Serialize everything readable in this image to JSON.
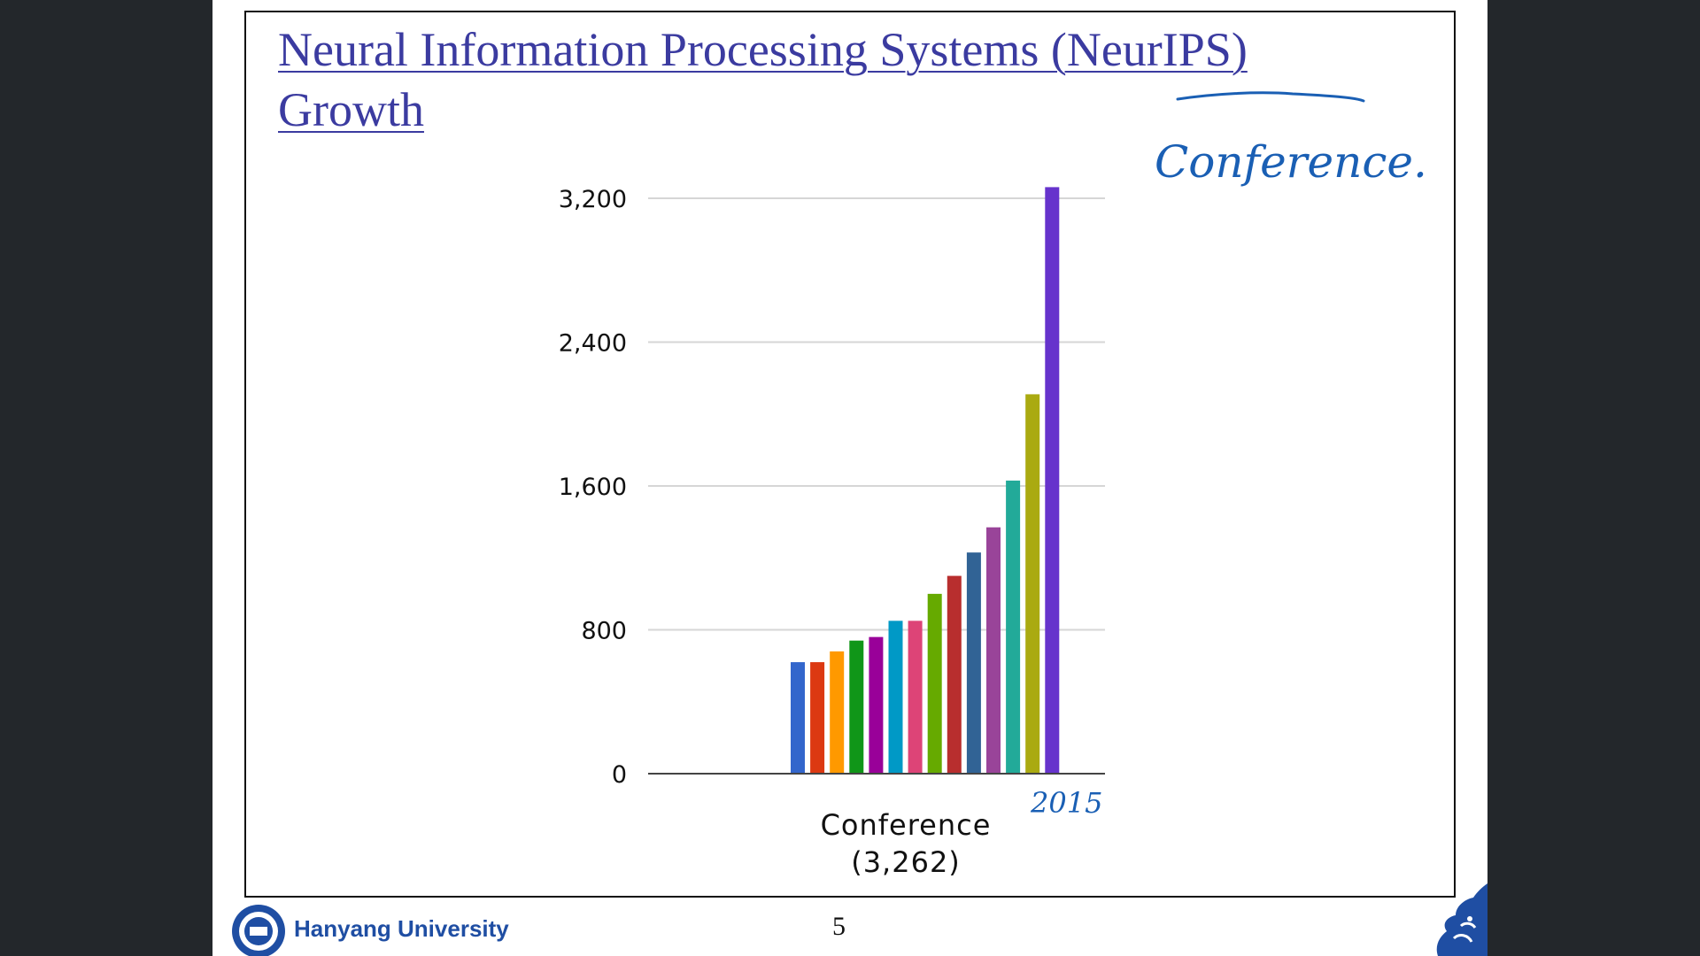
{
  "slide": {
    "title_line1": "Neural Information Processing Systems (NeurIPS)",
    "title_line2": "Growth",
    "page_number": "5",
    "footer_university": "Hanyang University"
  },
  "annotations": {
    "handwritten_note": "Conference.",
    "handwritten_year": "2015"
  },
  "chart_data": {
    "type": "bar",
    "title": "",
    "xlabel": "",
    "ylabel": "",
    "category_label_line1": "Conference",
    "category_label_line2": "(3,262)",
    "y_ticks": [
      0,
      800,
      1600,
      2400,
      3200
    ],
    "y_tick_labels": [
      "0",
      "800",
      "1,600",
      "2,400",
      "3,200"
    ],
    "ylim": [
      0,
      3200
    ],
    "grid": true,
    "values": [
      620,
      620,
      680,
      740,
      760,
      850,
      850,
      1000,
      1100,
      1230,
      1370,
      1630,
      2110,
      3262
    ],
    "colors": [
      "#3366cc",
      "#dc3912",
      "#ff9900",
      "#109618",
      "#990099",
      "#0099c6",
      "#dd4477",
      "#66aa00",
      "#b82e2e",
      "#316395",
      "#994499",
      "#22aa99",
      "#aaaa11",
      "#6633cc"
    ]
  }
}
